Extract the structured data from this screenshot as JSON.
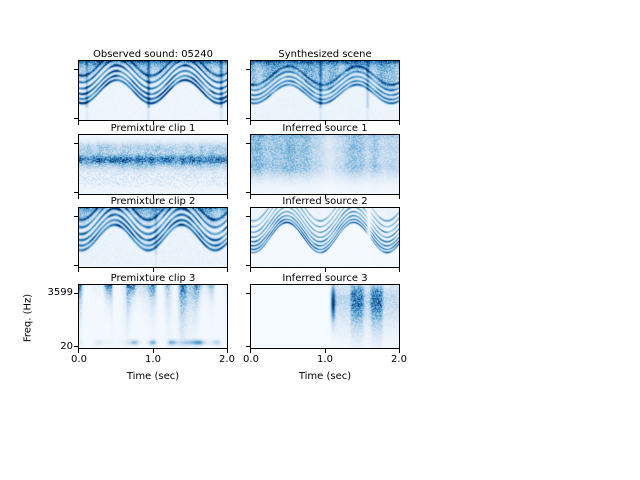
{
  "figure": {
    "background": "#ffffff",
    "axis_color": "#000000",
    "time_label": "Time (sec)",
    "freq_label": "Freq. (Hz)",
    "x_tick_labels": [
      "0.0",
      "1.0",
      "2.0"
    ],
    "y_tick_labels": [
      "3599",
      "20"
    ],
    "colormap": {
      "name": "Blues",
      "stops": [
        "#f7fbff",
        "#c6dbef",
        "#6baed6",
        "#2171b5",
        "#08306b"
      ]
    }
  },
  "chart_data": {
    "type": "heatmap",
    "subtype": "spectrogram-grid",
    "layout": {
      "rows": 4,
      "cols": 2
    },
    "x_axis": {
      "label": "Time (sec)",
      "range_sec": [
        0.0,
        2.0
      ],
      "ticks": [
        0.0,
        1.0,
        2.0
      ]
    },
    "y_axis": {
      "label": "Freq. (Hz)",
      "range_hz": [
        20,
        3599
      ],
      "ticks": [
        3599,
        20
      ]
    },
    "colormap": "Blues",
    "panels": [
      {
        "id": "observed",
        "row": 0,
        "col": 0,
        "title": "Observed sound: 05240",
        "content": "Dense spectrogram: repeating arched harmonic stacks (~2 chirp cycles) with noisy dark top band and vertical smears at ~0.9s and ~1.95s",
        "pattern": "harmonics",
        "params": {
          "seed": 11,
          "humps": 2.15,
          "phase": -1.85,
          "mid": 0.52,
          "amp": 0.2,
          "lines": 6,
          "spacing": 0.068,
          "sigma": 0.016,
          "line_strength": 0.85,
          "top_noise": 0.5,
          "top_edge": 0.8,
          "bg": 0.07,
          "columns": [
            [
              0.47,
              0.5
            ],
            [
              0.965,
              0.4
            ],
            [
              0.05,
              0.3
            ]
          ]
        }
      },
      {
        "id": "synthesized",
        "row": 0,
        "col": 1,
        "title": "Synthesized scene",
        "content": "Synthesized version of observed sound: same arched harmonic chirps over diffuse blue noise, slightly softer",
        "pattern": "harmonics",
        "params": {
          "seed": 23,
          "humps": 2.15,
          "phase": -1.85,
          "mid": 0.56,
          "amp": 0.16,
          "lines": 5,
          "spacing": 0.06,
          "sigma": 0.015,
          "line_strength": 0.65,
          "top_noise": 0.62,
          "top_edge": 0.75,
          "bg": 0.08,
          "columns": [
            [
              0.47,
              0.4
            ],
            [
              0.79,
              0.28
            ]
          ]
        }
      },
      {
        "id": "premixture-1",
        "row": 1,
        "col": 0,
        "title": "Premixture clip 1",
        "content": "Horizontal fuzzy noise band across full duration centered around 40% height; faint speckle rows below",
        "pattern": "band",
        "params": {
          "seed": 31,
          "bg": 0.05,
          "bands": [
            [
              0.42,
              0.05,
              0.95
            ],
            [
              0.3,
              0.09,
              0.45
            ],
            [
              0.53,
              0.07,
              0.4
            ],
            [
              0.18,
              0.06,
              0.25
            ]
          ],
          "rows": [
            [
              0.7,
              0.2
            ],
            [
              0.82,
              0.16
            ]
          ]
        }
      },
      {
        "id": "inferred-1",
        "row": 1,
        "col": 1,
        "title": "Inferred source 1",
        "content": "Broad blotchy blue noise filling upper half, organized in ~6 vertical pulses, fading toward bottom",
        "pattern": "blotch",
        "params": {
          "seed": 41,
          "strength": 0.85,
          "col_freq": 5.5,
          "flat": 0.5,
          "fade": 0.17
        }
      },
      {
        "id": "premixture-2",
        "row": 2,
        "col": 0,
        "title": "Premixture clip 2",
        "content": "Arched harmonic chirp stacks (~2 cycles) similar to observed sound with moderate top noise",
        "pattern": "harmonics",
        "params": {
          "seed": 53,
          "humps": 2.2,
          "phase": -1.75,
          "mid": 0.5,
          "amp": 0.22,
          "lines": 6,
          "spacing": 0.075,
          "sigma": 0.018,
          "line_strength": 0.8,
          "top_noise": 0.5,
          "top_edge": 0.45,
          "bg": 0.09,
          "columns": [
            [
              0.52,
              0.22
            ]
          ]
        }
      },
      {
        "id": "inferred-2",
        "row": 2,
        "col": 1,
        "title": "Inferred source 2",
        "content": "Clean arched harmonic stacks on white background, many thin stacked lamellae, white vertical gap near 1.6s",
        "pattern": "harmonics",
        "params": {
          "seed": 61,
          "humps": 2.2,
          "phase": -1.75,
          "mid": 0.5,
          "amp": 0.26,
          "lines": 8,
          "spacing": 0.05,
          "sigma": 0.012,
          "line_strength": 0.8,
          "top_noise": 0.08,
          "top_edge": 0,
          "bg": 0.02,
          "columns": [],
          "gaps": [
            0.8
          ]
        }
      },
      {
        "id": "premixture-3",
        "row": 3,
        "col": 0,
        "title": "Premixture clip 3",
        "content": "Sparse vertical streaks hanging from top edge (rain-like transients) across full 2s, blob row near bottom edge",
        "pattern": "streaks",
        "params": {
          "seed": 71,
          "col_freq": 20,
          "strength": 1.0,
          "bottom": 0.6,
          "bg": 0.02
        }
      },
      {
        "id": "inferred-3",
        "row": 3,
        "col": 1,
        "title": "Inferred source 3",
        "content": "Silent (white) until ~1.1s, then dark onset column followed by vertical streak texture in upper half through 2s",
        "pattern": "streaks",
        "params": {
          "seed": 83,
          "col_freq": 14,
          "strength": 0.95,
          "onset": 0.53,
          "floor": 0.35,
          "band_y": 0.22,
          "band_h": 0.2,
          "below": 0.3,
          "onset_boost": 0.85,
          "bg": 0.01
        }
      }
    ]
  }
}
